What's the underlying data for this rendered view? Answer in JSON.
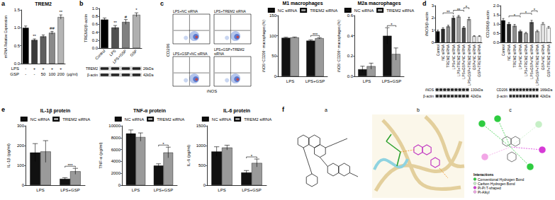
{
  "panels": [
    "a",
    "b",
    "c",
    "d",
    "e",
    "f"
  ],
  "chart_data": [
    {
      "type": "bar",
      "title": "TREM2",
      "y_label": "mRNA Relative Expression",
      "row_labels": [
        "LPS",
        "GSP"
      ],
      "row_unit": "(μg/ml)",
      "categories": [
        "-\n-",
        "+\n-",
        "+\n50",
        "+\n100",
        "+\n200"
      ],
      "values": [
        1.0,
        0.66,
        0.76,
        0.86,
        1.3
      ],
      "errors": [
        0.05,
        0.03,
        0.04,
        0.04,
        0.06
      ],
      "colors": [
        "#000000",
        "#3a3a3a",
        "#5e5e5e",
        "#8a8a8a",
        "#b5b5b5"
      ],
      "ylim": [
        0,
        1.5
      ],
      "yticks": [
        {
          "value": 0,
          "label": "0.0"
        },
        0.5,
        {
          "value": 1,
          "label": "1.0"
        },
        1.5
      ],
      "grid": false,
      "annotations": [
        {
          "text": "**",
          "category": "+\n-"
        },
        {
          "text": "##",
          "category": "+\n100"
        },
        {
          "text": "**",
          "category": "+\n200"
        }
      ]
    },
    {
      "type": "bar",
      "y_label": "TREM2/β-actin",
      "categories": [
        "Control",
        "LPS",
        "LPS+GSP",
        "GSP"
      ],
      "values": [
        0.72,
        0.52,
        0.66,
        0.84
      ],
      "errors": [
        0.04,
        0.05,
        0.06,
        0.05
      ],
      "colors": [
        "#000000",
        "#505050",
        "#808080",
        "#b0b0b0"
      ],
      "ylim": [
        0,
        1
      ],
      "yticks": [
        {
          "value": 0,
          "label": "0.0"
        },
        0.2,
        0.4,
        0.6,
        0.8,
        {
          "value": 1,
          "label": "1.0"
        }
      ],
      "grid": false,
      "annotations": [
        {
          "text": "**",
          "category": "LPS"
        },
        {
          "text": "#",
          "category": "LPS+GSP"
        },
        {
          "text": "*",
          "category": "GSP"
        }
      ],
      "blot": {
        "rows": [
          {
            "label": "TREM2",
            "size": "26kDa"
          },
          {
            "label": "β-actin",
            "size": "42kDa"
          }
        ]
      }
    },
    {
      "type": "bar",
      "title": "M1 macrophages",
      "y_label": "iNOS⁺CD206⁻ macrophages (%)",
      "categories": [
        "LPS",
        "LPS+GSP"
      ],
      "series": [
        {
          "name": "NC siRNA",
          "color": "#111111",
          "values": [
            95,
            88
          ],
          "errors": [
            1.5,
            2
          ]
        },
        {
          "name": "TREM2 siRNA",
          "color": "#9a9a9a",
          "values": [
            96,
            94
          ],
          "errors": [
            1,
            1.5
          ]
        }
      ],
      "ylim": [
        0,
        150
      ],
      "yticks": [
        0,
        50,
        100,
        150
      ],
      "grid": false,
      "legend": "top",
      "annotations": [
        {
          "text": "***",
          "category": "LPS+GSP"
        }
      ]
    },
    {
      "type": "bar",
      "title": "M2a macrophages",
      "y_label": "iNOS⁻CD206⁺ macrophages (%)",
      "categories": [
        "LPS",
        "LPS+GSP"
      ],
      "series": [
        {
          "name": "NC siRNA",
          "color": "#111111",
          "values": [
            0.07,
            0.4
          ],
          "errors": [
            0.03,
            0.08
          ]
        },
        {
          "name": "TREM2 siRNA",
          "color": "#9a9a9a",
          "values": [
            0.1,
            0.22
          ],
          "errors": [
            0.03,
            0.06
          ]
        }
      ],
      "ylim": [
        0,
        0.6
      ],
      "yticks": [
        {
          "value": 0,
          "label": "0.0"
        },
        0.2,
        0.4,
        0.6
      ],
      "grid": false,
      "legend": "top",
      "annotations": [
        {
          "text": "*",
          "category": "LPS+GSP"
        }
      ]
    },
    {
      "type": "bar",
      "y_label": "iNOS/β-actin",
      "categories": [
        "Control",
        "NC siRNA",
        "TREM2 siRNA",
        "LPS+NC siRNA",
        "LPS+TREM2 siRNA",
        "LPS+GSP+NC siRNA",
        "LPS+GSP+TREM2 siRNA",
        "GSP+NC siRNA",
        "GSP+TREM2 siRNA"
      ],
      "values": [
        0.9,
        1.1,
        1.3,
        2.0,
        2.1,
        1.2,
        1.9,
        0.5,
        0.5
      ],
      "errors": [
        0.1,
        0.1,
        0.1,
        0.15,
        0.1,
        0.1,
        0.15,
        0.05,
        0.05
      ],
      "colors": [
        "#000000",
        "#2b2b2b",
        "#8c8c8c",
        "#3d3d3d",
        "#a0a0a0",
        "#4d4d4d",
        "#b3b3b3",
        "#e0e0e0",
        "#f2f2f2"
      ],
      "ylim": [
        0,
        3
      ],
      "yticks": [
        0,
        1,
        2,
        3
      ],
      "grid": false,
      "annotations": [
        {
          "text": "**",
          "from": "NC siRNA",
          "to": "LPS+NC siRNA"
        },
        {
          "text": "**",
          "from": "LPS+NC siRNA",
          "to": "LPS+GSP+NC siRNA"
        },
        {
          "text": "*",
          "from": "LPS+GSP+NC siRNA",
          "to": "LPS+GSP+TREM2 siRNA"
        }
      ],
      "blot": {
        "rows": [
          {
            "label": "iNOS",
            "size": "130kDa"
          },
          {
            "label": "β-actin",
            "size": "42kDa"
          }
        ]
      }
    },
    {
      "type": "bar",
      "y_label": "CD206/β-actin",
      "categories": [
        "Control",
        "NC siRNA",
        "TREM2 siRNA",
        "LPS+NC siRNA",
        "LPS+TREM2 siRNA",
        "LPS+GSP+NC siRNA",
        "LPS+GSP+TREM2 siRNA",
        "GSP+NC siRNA",
        "GSP+TREM2 siRNA"
      ],
      "values": [
        1.2,
        1.0,
        0.9,
        0.6,
        0.5,
        1.1,
        0.6,
        1.0,
        0.8
      ],
      "errors": [
        0.1,
        0.08,
        0.08,
        0.06,
        0.05,
        0.1,
        0.06,
        0.08,
        0.07
      ],
      "colors": [
        "#000000",
        "#2b2b2b",
        "#8c8c8c",
        "#3d3d3d",
        "#a0a0a0",
        "#4d4d4d",
        "#b3b3b3",
        "#e0e0e0",
        "#f2f2f2"
      ],
      "ylim": [
        0,
        2
      ],
      "yticks": [
        {
          "value": 0,
          "label": "0.0"
        },
        0.5,
        {
          "value": 1,
          "label": "1.0"
        },
        1.5,
        {
          "value": 2,
          "label": "2.0"
        }
      ],
      "grid": false,
      "annotations": [
        {
          "text": "*",
          "from": "NC siRNA",
          "to": "LPS+NC siRNA"
        },
        {
          "text": "*",
          "from": "LPS+NC siRNA",
          "to": "LPS+GSP+NC siRNA"
        },
        {
          "text": "*",
          "from": "LPS+GSP+NC siRNA",
          "to": "LPS+GSP+TREM2 siRNA"
        }
      ],
      "blot": {
        "rows": [
          {
            "label": "CD206",
            "size": "166kDa"
          },
          {
            "label": "β-actin",
            "size": "42kDa"
          }
        ]
      }
    },
    {
      "type": "bar",
      "title": "IL-1β protein",
      "y_label": "IL-1β (pg/ml)",
      "categories": [
        "LPS",
        "LPS+GSP"
      ],
      "series": [
        {
          "name": "NC siRNA",
          "color": "#111111",
          "values": [
            165,
            32
          ],
          "errors": [
            45,
            6
          ]
        },
        {
          "name": "TREM2 siRNA",
          "color": "#9a9a9a",
          "values": [
            170,
            70
          ],
          "errors": [
            55,
            15
          ]
        }
      ],
      "ylim": [
        0,
        300
      ],
      "yticks": [
        0,
        100,
        200,
        300
      ],
      "grid": false,
      "legend": "top",
      "annotations": [
        {
          "text": "***",
          "category": "LPS+GSP"
        }
      ]
    },
    {
      "type": "bar",
      "title": "TNF-α protein",
      "y_label": "TNF-α (pg/ml)",
      "categories": [
        "LPS",
        "LPS+GSP"
      ],
      "series": [
        {
          "name": "NC siRNA",
          "color": "#111111",
          "values": [
            8700,
            3300
          ],
          "errors": [
            600,
            300
          ]
        },
        {
          "name": "TREM2 siRNA",
          "color": "#9a9a9a",
          "values": [
            8100,
            5500
          ],
          "errors": [
            700,
            900
          ]
        }
      ],
      "ylim": [
        0,
        10000
      ],
      "yticks": [
        0,
        2000,
        4000,
        6000,
        8000,
        10000
      ],
      "grid": false,
      "legend": "top",
      "annotations": [
        {
          "text": "*",
          "category": "LPS+GSP"
        }
      ]
    },
    {
      "type": "bar",
      "title": "IL-6 protein",
      "y_label": "IL-6 (pg/ml)",
      "categories": [
        "LPS",
        "LPS+GSP"
      ],
      "series": [
        {
          "name": "NC siRNA",
          "color": "#111111",
          "values": [
            850,
            320
          ],
          "errors": [
            120,
            50
          ]
        },
        {
          "name": "TREM2 siRNA",
          "color": "#9a9a9a",
          "values": [
            950,
            560
          ],
          "errors": [
            60,
            100
          ]
        }
      ],
      "ylim": [
        0,
        1500
      ],
      "yticks": [
        0,
        500,
        1000,
        1500
      ],
      "grid": false,
      "legend": "top",
      "annotations": [
        {
          "text": "*",
          "category": "LPS+GSP"
        }
      ]
    }
  ],
  "flow_cytometry": {
    "plots": [
      "LPS+NC siRNA",
      "LPS+TREM2 siRNA",
      "LPS+GSP+NC siRNA",
      "LPS+GSP+TREM2 siRNA"
    ],
    "x_label": "iNOS",
    "y_label": "CD206"
  },
  "docking": {
    "labels": [
      "a",
      "b",
      "c"
    ],
    "interactions_title": "Interactions",
    "interactions": [
      {
        "label": "Conventional Hydrogen Bond",
        "color": "#2ecc40"
      },
      {
        "label": "Carbon Hydrogen Bond",
        "color": "#c6efc6"
      },
      {
        "label": "Pi-Pi T-shaped",
        "color": "#d63ad6"
      },
      {
        "label": "Pi-Alkyl",
        "color": "#f2a6e6"
      }
    ]
  }
}
